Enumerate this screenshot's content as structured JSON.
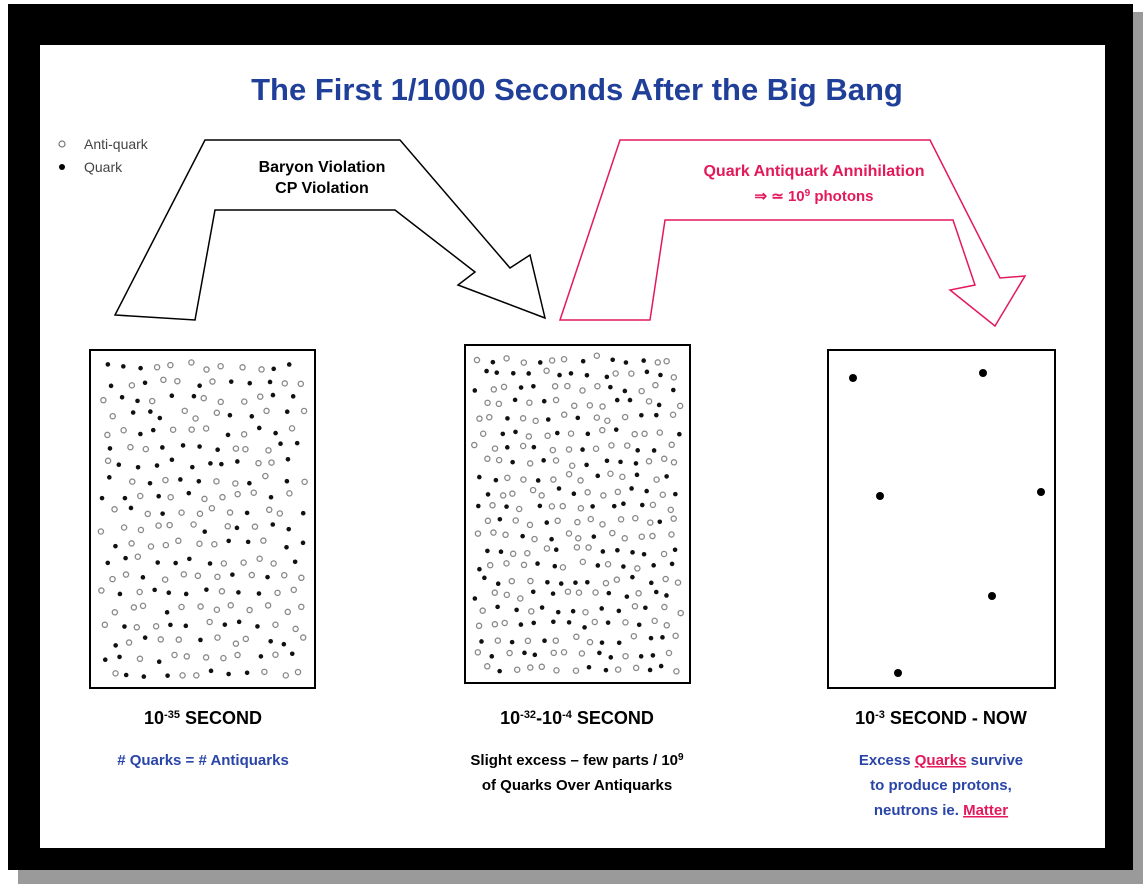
{
  "title": "The First 1/1000 Seconds After the Big Bang",
  "legend": [
    "Anti-quark",
    "Quark"
  ],
  "arrows": [
    {
      "lines": [
        "Baryon Violation",
        "CP Violation"
      ]
    },
    {
      "line1": "Quark Antiquark Annihilation",
      "line2": [
        "⇒ ≃ 10",
        "9",
        " photons"
      ]
    }
  ],
  "panels": [
    {
      "time": [
        "10",
        "-35",
        " SECOND"
      ],
      "caption": [
        "# Quarks = # Antiquarks"
      ]
    },
    {
      "time": [
        "10",
        "-32",
        "-10",
        "-4",
        " SECOND"
      ],
      "caption": [
        "Slight excess – few parts / 10",
        "9",
        "of Quarks Over Antiquarks"
      ]
    },
    {
      "time": [
        "10",
        "-3",
        " SECOND - NOW"
      ],
      "caption": [
        "Excess ",
        "Quarks",
        " survive",
        "to produce protons,",
        "neutrons ie. ",
        "Matter"
      ]
    }
  ]
}
